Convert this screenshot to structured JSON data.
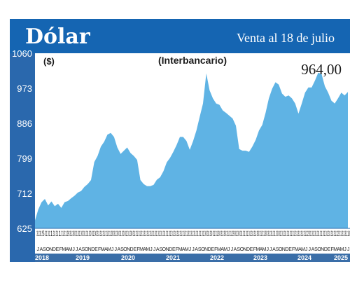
{
  "header": {
    "title": "Dólar",
    "subtitle": "Venta al 18 de julio"
  },
  "colors": {
    "header_blue": "#1565b2",
    "axis_blue": "#2a68ad",
    "area_fill": "#5fb3e4",
    "year_bar": "#3a6ea8"
  },
  "chart_data": {
    "type": "area",
    "title": "(Interbancario)",
    "unit_label": "($)",
    "last_value_label": "964,00",
    "ylim": [
      625,
      1060
    ],
    "yticks": [
      625,
      712,
      799,
      886,
      973,
      1060
    ],
    "grid": false,
    "day_labels": [
      "31",
      "31",
      "5",
      "31",
      "31",
      "1",
      "31",
      "31",
      "1",
      "31",
      "31",
      "29",
      "31",
      "30",
      "31",
      "31",
      "30",
      "31",
      "31",
      "30",
      "31",
      "30",
      "31",
      "31",
      "31",
      "31",
      "31",
      "28",
      "31",
      "30",
      "31",
      "30",
      "31",
      "31",
      "30",
      "31",
      "31",
      "31",
      "31",
      "31",
      "31",
      "31",
      "31",
      "31",
      "31",
      "31",
      "31",
      "31",
      "31",
      "31",
      "31",
      "31",
      "31",
      "31",
      "31",
      "31",
      "31",
      "31",
      "31",
      "31",
      "31",
      "30",
      "31",
      "30",
      "31",
      "31",
      "30",
      "31",
      "30",
      "31",
      "31",
      "29",
      "31",
      "30",
      "31",
      "31",
      "31",
      "31",
      "31",
      "31",
      "30",
      "31",
      "31",
      "30",
      "31",
      "31",
      "31",
      "30",
      "31",
      "31",
      "31",
      "31",
      "31",
      "31",
      "31",
      "31",
      "31",
      "31",
      "22",
      "31",
      "31",
      "31",
      "31",
      "31",
      "31",
      "31",
      "31",
      "31",
      "31",
      "22",
      "31",
      "31",
      "31",
      "18"
    ],
    "month_initials": [
      "J",
      "A",
      "S",
      "O",
      "N",
      "D",
      "E",
      "F",
      "M",
      "A",
      "M",
      "J",
      "J",
      "A",
      "S",
      "O",
      "N",
      "D",
      "E",
      "F",
      "M",
      "A",
      "M",
      "J",
      "J",
      "A",
      "S",
      "O",
      "N",
      "D",
      "E",
      "F",
      "M",
      "A",
      "M",
      "J",
      "J",
      "A",
      "S",
      "O",
      "N",
      "D",
      "E",
      "F",
      "M",
      "A",
      "M",
      "J",
      "J",
      "A",
      "S",
      "O",
      "N",
      "D",
      "E",
      "F",
      "M",
      "A",
      "M",
      "J",
      "J",
      "A",
      "S",
      "O",
      "N",
      "D",
      "E",
      "F",
      "M",
      "A",
      "M",
      "J",
      "J",
      "A",
      "S",
      "O",
      "N",
      "D",
      "E",
      "F",
      "M",
      "A",
      "M",
      "J",
      "J",
      "A",
      "S",
      "O",
      "N",
      "D",
      "E",
      "F",
      "M",
      "A",
      "M",
      "J",
      "J"
    ],
    "years": [
      "2018",
      "2019",
      "2020",
      "2021",
      "2022",
      "2023",
      "2024",
      "2025"
    ],
    "series": [
      {
        "values": [
          645,
          672,
          690,
          698,
          682,
          692,
          680,
          686,
          676,
          690,
          693,
          700,
          706,
          714,
          718,
          728,
          735,
          745,
          790,
          805,
          828,
          840,
          858,
          862,
          852,
          826,
          810,
          818,
          826,
          812,
          805,
          795,
          745,
          735,
          730,
          730,
          733,
          746,
          752,
          767,
          789,
          800,
          815,
          832,
          852,
          852,
          842,
          820,
          842,
          868,
          902,
          935,
          1010,
          968,
          948,
          935,
          932,
          918,
          912,
          905,
          898,
          880,
          822,
          818,
          818,
          815,
          828,
          845,
          868,
          882,
          912,
          948,
          972,
          988,
          982,
          960,
          952,
          955,
          948,
          935,
          910,
          935,
          962,
          975,
          975,
          992,
          1012,
          1008,
          978,
          962,
          942,
          935,
          948,
          962,
          955,
          964
        ]
      }
    ]
  }
}
